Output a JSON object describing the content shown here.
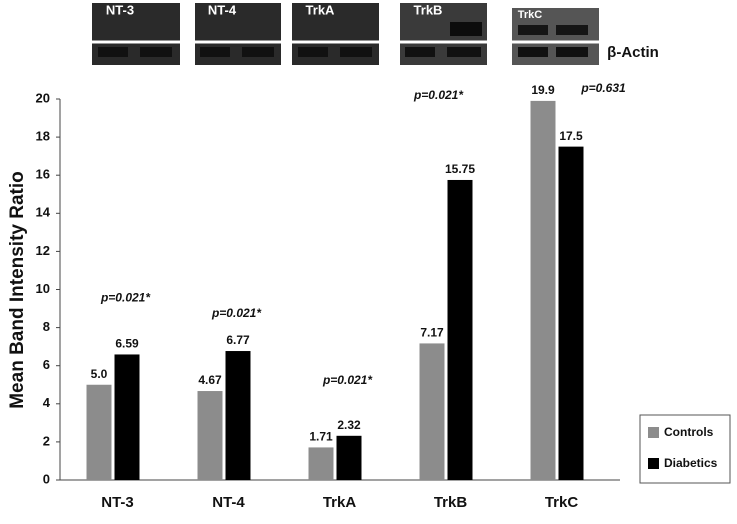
{
  "chart_data": {
    "type": "bar",
    "ylabel": "Mean Band Intensity Ratio",
    "categories": [
      "NT-3",
      "NT-4",
      "TrkA",
      "TrkB",
      "TrkC"
    ],
    "series": [
      {
        "name": "Controls",
        "color": "#8c8c8c",
        "values": [
          5.0,
          4.67,
          1.71,
          7.17,
          19.9
        ],
        "value_labels": [
          "5.0",
          "4.67",
          "1.71",
          "7.17",
          "19.9"
        ]
      },
      {
        "name": "Diabetics",
        "color": "#000000",
        "values": [
          6.59,
          6.77,
          2.32,
          15.75,
          17.5
        ]
      }
    ],
    "annotations": [
      "p=0.021*",
      "p=0.021*",
      "p=0.021*",
      "p=0.021*",
      "p=0.631"
    ],
    "blots": {
      "labels": [
        "NT-3",
        "NT-4",
        "TrkA",
        "TrkB",
        "TrkC"
      ],
      "reference": "β-Actin"
    },
    "ylim": [
      0,
      20
    ],
    "yticks": [
      0,
      2,
      4,
      6,
      8,
      10,
      12,
      14,
      16,
      18,
      20
    ],
    "grid": false,
    "legend": "bottom-right"
  }
}
